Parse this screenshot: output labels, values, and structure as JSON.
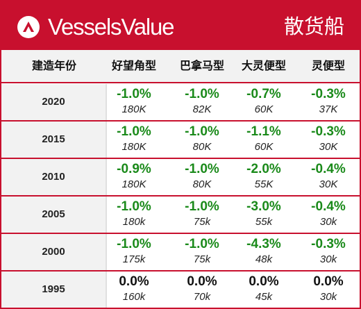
{
  "header": {
    "brand": "VesselsValue",
    "category": "散货船"
  },
  "columns": {
    "year": "建造年份",
    "c1": "好望角型",
    "c2": "巴拿马型",
    "c3": "大灵便型",
    "c4": "灵便型"
  },
  "rows": [
    {
      "year": "2020",
      "cells": [
        {
          "pct": "-1.0%",
          "val": "180K"
        },
        {
          "pct": "-1.0%",
          "val": "82K"
        },
        {
          "pct": "-0.7%",
          "val": "60K"
        },
        {
          "pct": "-0.3%",
          "val": "37K"
        }
      ]
    },
    {
      "year": "2015",
      "cells": [
        {
          "pct": "-1.0%",
          "val": "180K"
        },
        {
          "pct": "-1.0%",
          "val": "80K"
        },
        {
          "pct": "-1.1%",
          "val": "60K"
        },
        {
          "pct": "-0.3%",
          "val": "30K"
        }
      ]
    },
    {
      "year": "2010",
      "cells": [
        {
          "pct": "-0.9%",
          "val": "180K"
        },
        {
          "pct": "-1.0%",
          "val": "80K"
        },
        {
          "pct": "-2.0%",
          "val": "55K"
        },
        {
          "pct": "-0.4%",
          "val": "30K"
        }
      ]
    },
    {
      "year": "2005",
      "cells": [
        {
          "pct": "-1.0%",
          "val": "180k"
        },
        {
          "pct": "-1.0%",
          "val": "75k"
        },
        {
          "pct": "-3.0%",
          "val": "55k"
        },
        {
          "pct": "-0.4%",
          "val": "30k"
        }
      ]
    },
    {
      "year": "2000",
      "cells": [
        {
          "pct": "-1.0%",
          "val": "175k"
        },
        {
          "pct": "-1.0%",
          "val": "75k"
        },
        {
          "pct": "-4.3%",
          "val": "48k"
        },
        {
          "pct": "-0.3%",
          "val": "30k"
        }
      ]
    },
    {
      "year": "1995",
      "cells": [
        {
          "pct": "0.0%",
          "val": "160k"
        },
        {
          "pct": "0.0%",
          "val": "70k"
        },
        {
          "pct": "0.0%",
          "val": "45k"
        },
        {
          "pct": "0.0%",
          "val": "30k"
        }
      ]
    }
  ],
  "colors": {
    "brand_red": "#c8102e",
    "negative_green": "#1a8a1a",
    "zero_black": "#111111"
  }
}
